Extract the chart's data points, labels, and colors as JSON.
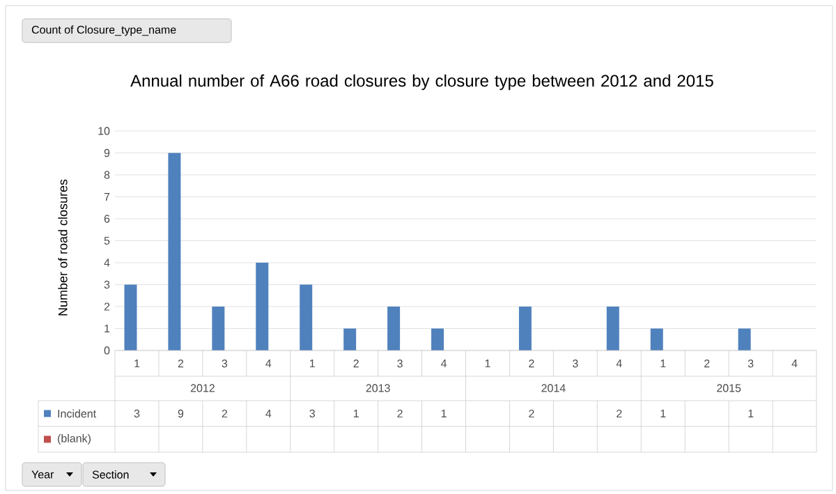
{
  "chart_data": {
    "type": "bar",
    "title": "Annual number of A66 road closures by closure type between 2012 and 2015",
    "ylabel": "Number of road closures",
    "categories": [
      "1",
      "2",
      "3",
      "4",
      "1",
      "2",
      "3",
      "4",
      "1",
      "2",
      "3",
      "4",
      "1",
      "2",
      "3",
      "4"
    ],
    "series": [
      {
        "name": "Incident",
        "color": "#4f81bd",
        "values": [
          3,
          9,
          2,
          4,
          3,
          1,
          2,
          1,
          null,
          2,
          null,
          2,
          1,
          null,
          1,
          null
        ]
      },
      {
        "name": "(blank)",
        "color": "#c0504d",
        "values": [
          null,
          null,
          null,
          null,
          null,
          null,
          null,
          null,
          null,
          null,
          null,
          null,
          null,
          null,
          null,
          null
        ]
      }
    ],
    "ylim": [
      0,
      10
    ],
    "yticks": [
      0,
      1,
      2,
      3,
      4,
      5,
      6,
      7,
      8,
      9,
      10
    ],
    "grid": "y",
    "data_labels": true,
    "annotations": [
      "Count of Closure_type_name",
      "2012",
      "2013",
      "2014",
      "2015",
      "Year",
      "Section"
    ]
  }
}
